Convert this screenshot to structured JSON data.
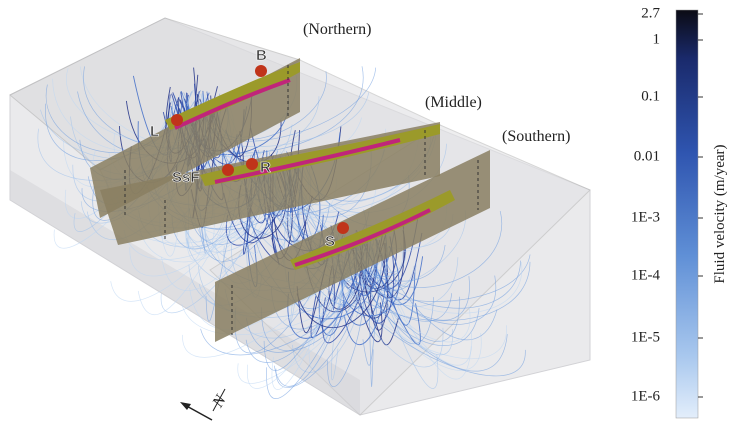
{
  "regions": [
    "(Northern)",
    "(Middle)",
    "(Southern)"
  ],
  "points": [
    "B",
    "L",
    "SsF",
    "R",
    "S"
  ],
  "compass": "N",
  "colorbar": {
    "title": "Fluid velocity (m/year)",
    "ticks": [
      "2.7",
      "1",
      "0.1",
      "0.01",
      "1E-3",
      "1E-4",
      "1E-5",
      "1E-6"
    ]
  }
}
